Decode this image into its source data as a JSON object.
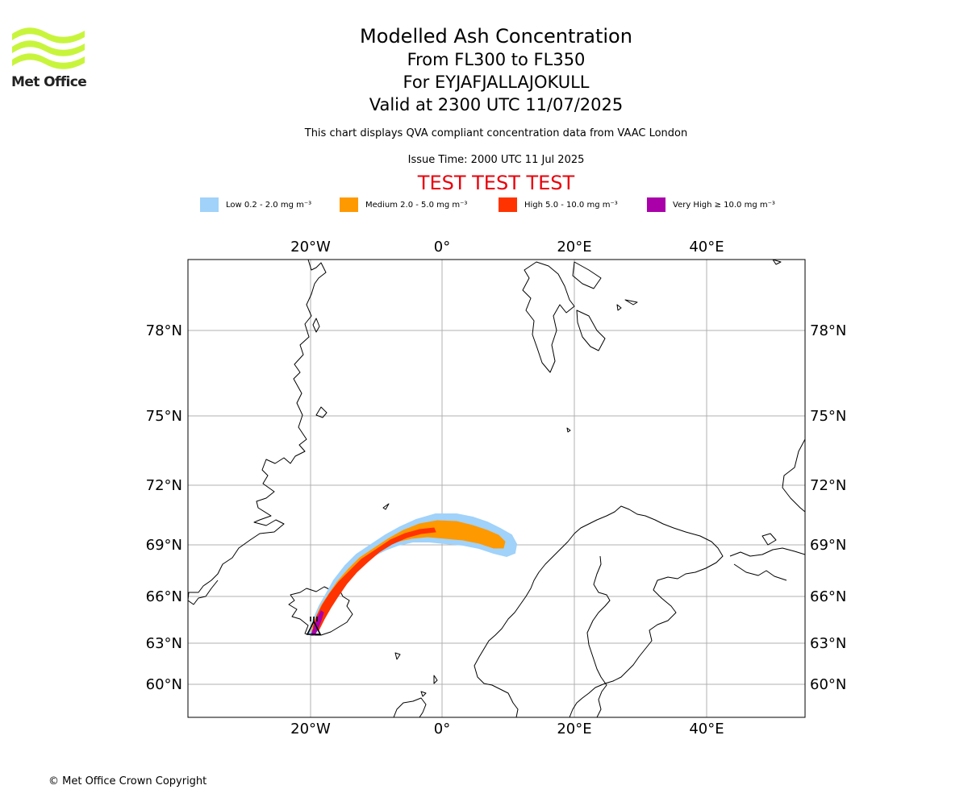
{
  "logo": {
    "name": "Met Office",
    "icon": "met-office-waves-icon",
    "color": "#c8f53c"
  },
  "title": {
    "line1": "Modelled Ash Concentration",
    "line2": "From FL300 to FL350",
    "line3": "For EYJAFJALLAJOKULL",
    "line4": "Valid at 2300 UTC 11/07/2025"
  },
  "subtitle": "This chart displays QVA compliant concentration data from VAAC London",
  "issue_time": "Issue Time: 2000 UTC 11 Jul 2025",
  "test_banner": "TEST TEST TEST",
  "legend": [
    {
      "label": "Low 0.2 - 2.0 mg m⁻³",
      "color": "#a0d2fa"
    },
    {
      "label": "Medium 2.0 - 5.0 mg m⁻³",
      "color": "#ff9900"
    },
    {
      "label": "High 5.0 - 10.0 mg m⁻³",
      "color": "#ff3300"
    },
    {
      "label": "Very High  ≥  10.0 mg m⁻³",
      "color": "#aa00aa"
    }
  ],
  "map": {
    "lon_labels": [
      "20°W",
      "0°",
      "20°E",
      "40°E"
    ],
    "lat_labels": [
      "78°N",
      "75°N",
      "72°N",
      "69°N",
      "66°N",
      "63°N",
      "60°N"
    ],
    "gridlines": true,
    "volcano_marker": "volcano-icon"
  },
  "copyright": "© Met Office Crown Copyright"
}
